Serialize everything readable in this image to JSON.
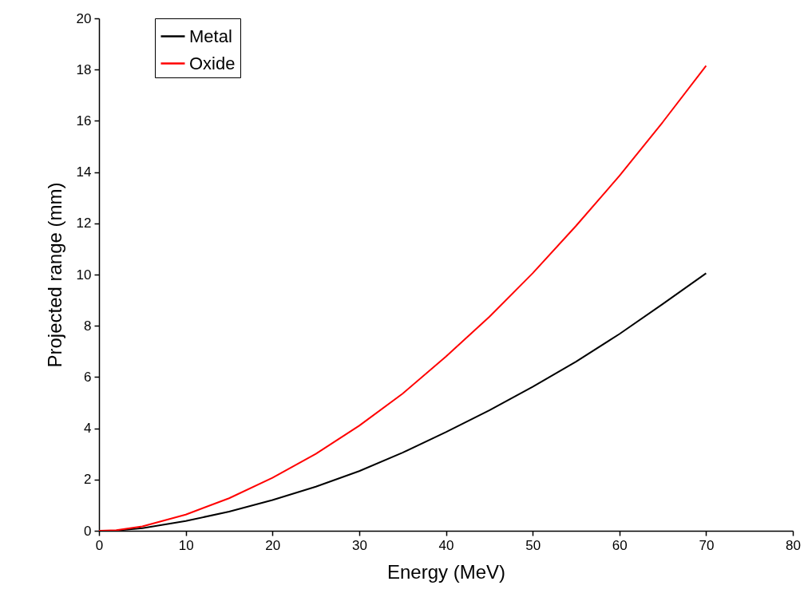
{
  "chart_data": {
    "type": "line",
    "xlabel": "Energy (MeV)",
    "ylabel": "Projected range (mm)",
    "x": [
      0,
      2,
      5,
      10,
      15,
      20,
      25,
      30,
      35,
      40,
      45,
      50,
      55,
      60,
      65,
      70
    ],
    "series": [
      {
        "name": "Metal",
        "color": "#000000",
        "values": [
          0,
          0.01,
          0.1,
          0.38,
          0.75,
          1.2,
          1.72,
          2.33,
          3.05,
          3.85,
          4.7,
          5.62,
          6.6,
          7.68,
          8.85,
          10.05
        ]
      },
      {
        "name": "Oxide",
        "color": "#ff0000",
        "values": [
          0,
          0.02,
          0.17,
          0.63,
          1.27,
          2.07,
          3.0,
          4.1,
          5.35,
          6.8,
          8.35,
          10.05,
          11.9,
          13.85,
          15.95,
          18.15
        ]
      }
    ],
    "xlim": [
      0,
      80
    ],
    "xticks": [
      0,
      10,
      20,
      30,
      40,
      50,
      60,
      70,
      80
    ],
    "ylim": [
      0,
      20
    ],
    "yticks": [
      0,
      2,
      4,
      6,
      8,
      10,
      12,
      14,
      16,
      18,
      20
    ],
    "grid": false,
    "legend": "top left",
    "line_style": "solid",
    "marker": "none"
  }
}
